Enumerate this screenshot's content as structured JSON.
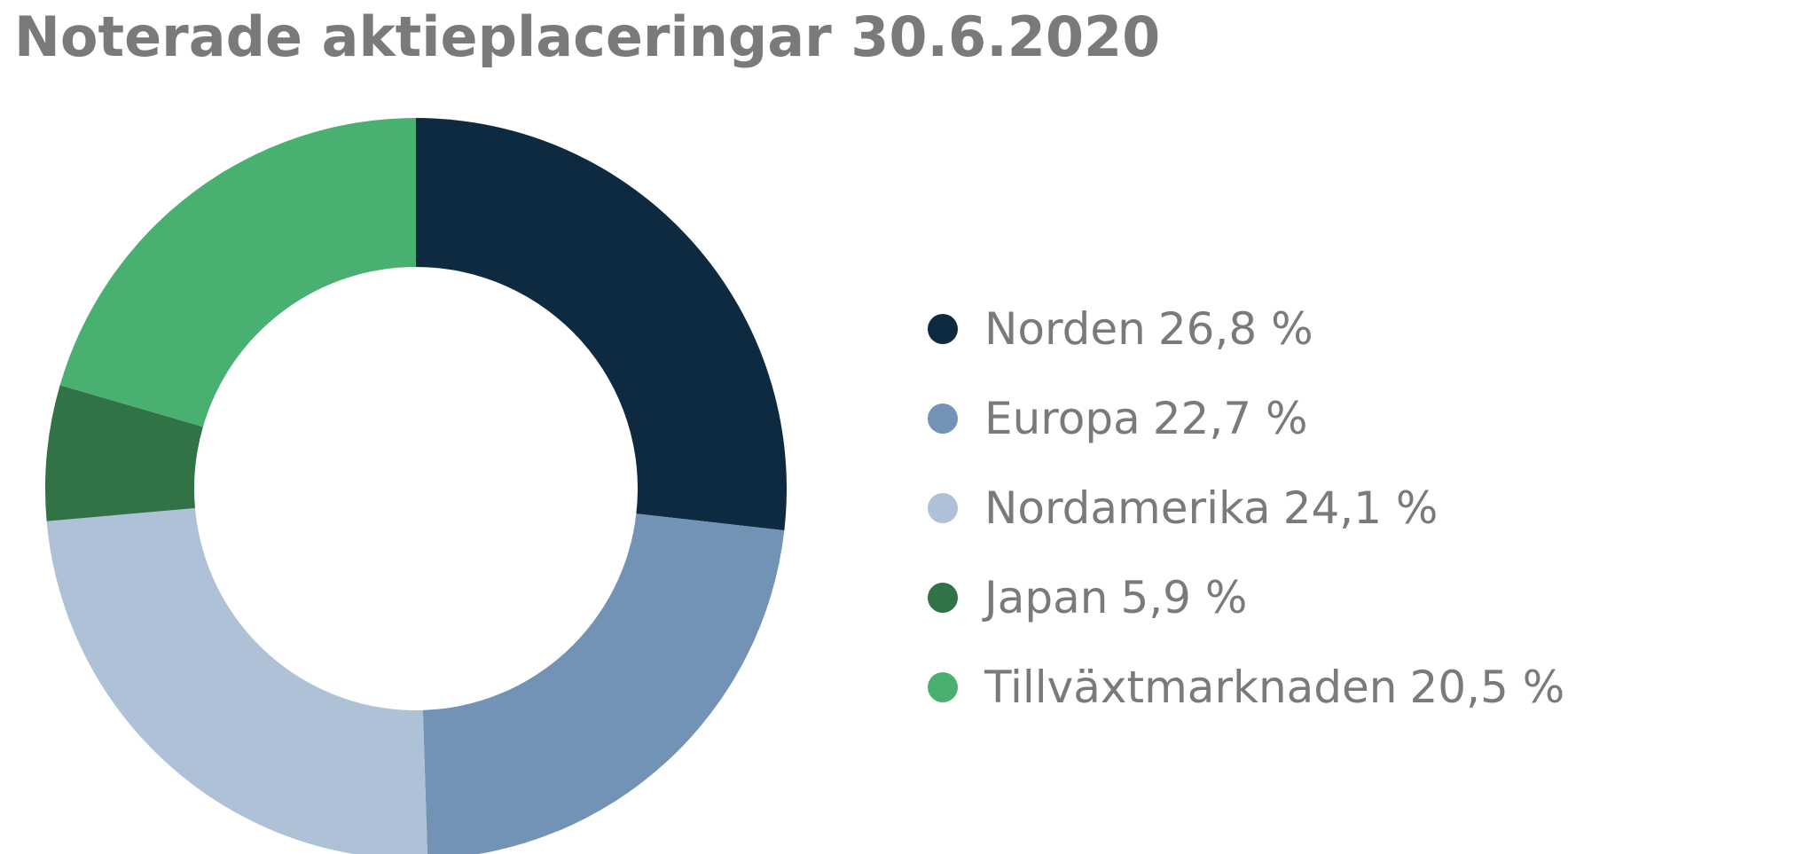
{
  "chart_data": {
    "type": "pie",
    "title": "Noterade aktieplaceringar 30.6.2020",
    "variant": "donut",
    "legend_position": "right",
    "slices": [
      {
        "label": "Norden",
        "value": 26.8,
        "value_text": "26,8 %",
        "color": "#0d2a40"
      },
      {
        "label": "Europa",
        "value": 22.7,
        "value_text": "22,7 %",
        "color": "#7293b6"
      },
      {
        "label": "Nordamerika",
        "value": 24.1,
        "value_text": "24,1 %",
        "color": "#aec1d6"
      },
      {
        "label": "Japan",
        "value": 5.9,
        "value_text": "5,9 %",
        "color": "#317246"
      },
      {
        "label": "Tillväxtmarknaden",
        "value": 20.5,
        "value_text": "20,5 %",
        "color": "#4ab071"
      }
    ]
  }
}
